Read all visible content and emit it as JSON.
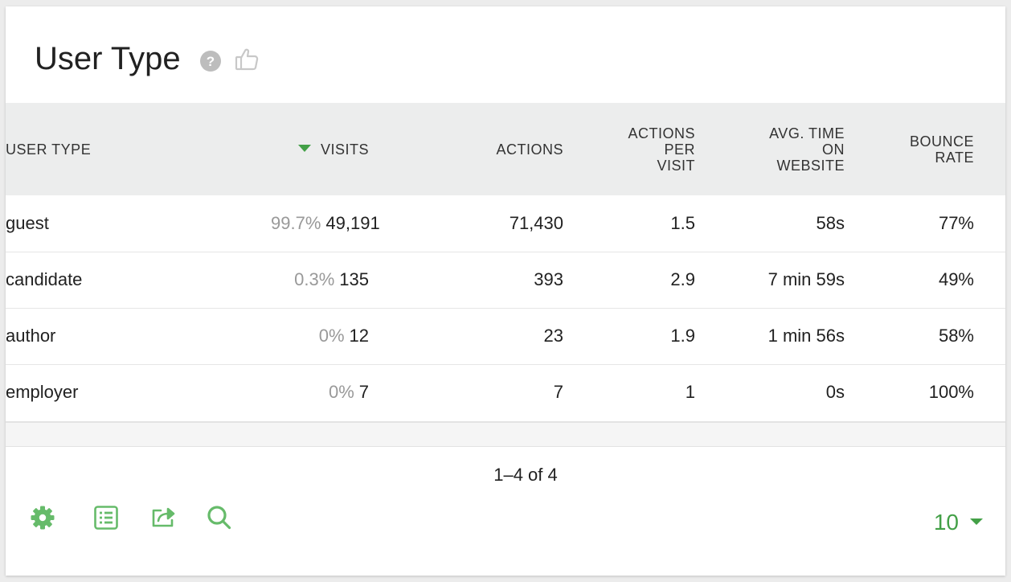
{
  "widget": {
    "title": "User Type",
    "help_icon": "question-circle-icon",
    "rate_icon": "thumbs-up-icon"
  },
  "table": {
    "columns": {
      "label": "USER TYPE",
      "visits": "VISITS",
      "actions": "ACTIONS",
      "actions_per_visit": [
        "ACTIONS",
        "PER",
        "VISIT"
      ],
      "avg_time": [
        "AVG. TIME",
        "ON",
        "WEBSITE"
      ],
      "bounce_rate": [
        "BOUNCE",
        "RATE"
      ]
    },
    "sorted_column": "visits",
    "sort_direction": "descending",
    "rows": [
      {
        "label": "guest",
        "visits_ratio": "99.7%",
        "visits": "49,191",
        "actions": "71,430",
        "actions_per_visit": "1.5",
        "avg_time": "58s",
        "bounce_rate": "77%"
      },
      {
        "label": "candidate",
        "visits_ratio": "0.3%",
        "visits": "135",
        "actions": "393",
        "actions_per_visit": "2.9",
        "avg_time": "7 min 59s",
        "bounce_rate": "49%"
      },
      {
        "label": "author",
        "visits_ratio": "0%",
        "visits": "12",
        "actions": "23",
        "actions_per_visit": "1.9",
        "avg_time": "1 min 56s",
        "bounce_rate": "58%"
      },
      {
        "label": "employer",
        "visits_ratio": "0%",
        "visits": "7",
        "actions": "7",
        "actions_per_visit": "1",
        "avg_time": "0s",
        "bounce_rate": "100%"
      }
    ]
  },
  "footer": {
    "pagination": "1–4 of 4",
    "icons": [
      "settings-icon",
      "table-view-icon",
      "export-icon",
      "search-icon"
    ],
    "limit": "10"
  },
  "colors": {
    "accent": "#43a047",
    "icon_green": "#66bb6a",
    "header_bg": "#eceded",
    "muted_text": "#999999"
  }
}
